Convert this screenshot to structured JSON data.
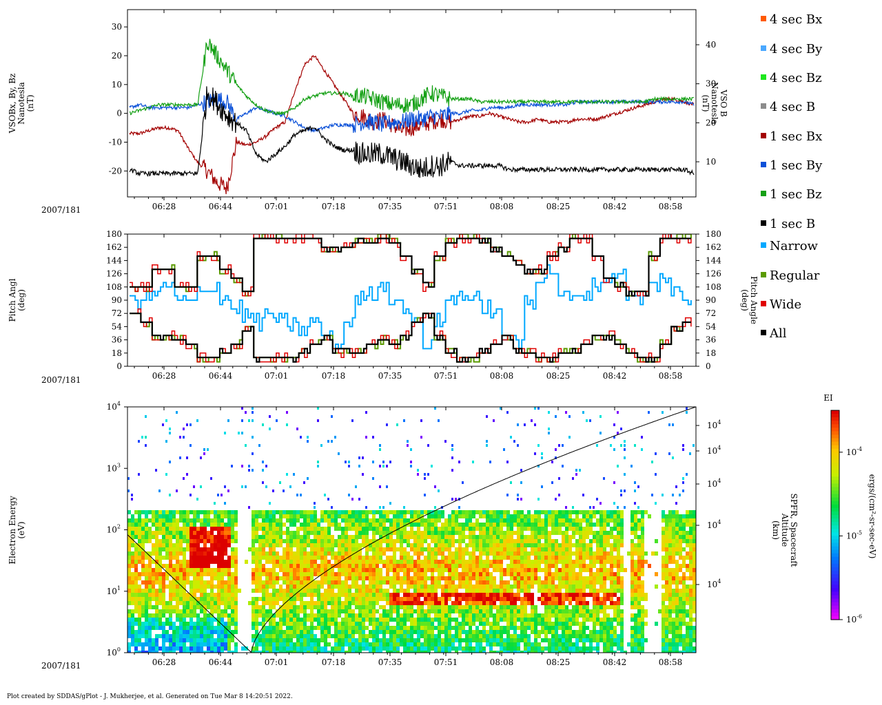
{
  "chart_data": [
    {
      "type": "line",
      "id": "mag",
      "ylabel_left": [
        "VSOBx, By, Bz",
        "Nanotesla",
        "(nT)"
      ],
      "ylabel_right": [
        "VSO B",
        "Nanotesla",
        "(nT)"
      ],
      "ylim": [
        -29,
        36
      ],
      "ylim_right": [
        1,
        49
      ],
      "yticks": [
        -20,
        -10,
        0,
        10,
        20,
        30
      ],
      "yticks_right": [
        10,
        20,
        30,
        40
      ],
      "date_label": "2007/181",
      "xticks": [
        "06:28",
        "06:44",
        "07:01",
        "07:18",
        "07:35",
        "07:51",
        "08:08",
        "08:25",
        "08:42",
        "08:58"
      ],
      "xrange": [
        "06:15",
        "09:04"
      ],
      "series": [
        {
          "name": "1 sec Bx",
          "color": "#a30000",
          "values": [
            -7,
            -7,
            -6,
            -5,
            -5,
            -6,
            -12,
            -17,
            -20,
            -24,
            -26,
            -10,
            -11,
            -10,
            -8,
            -5,
            -3,
            8,
            17,
            20,
            15,
            10,
            5,
            0,
            -1,
            -3,
            -2,
            -4,
            -6,
            -5,
            -4,
            -3,
            -2,
            -3,
            -2,
            -1,
            -1,
            0,
            -1,
            -2,
            -3,
            -3,
            -2,
            -3,
            -3,
            -3,
            -2,
            -2,
            -2,
            -1,
            0,
            1,
            2,
            3,
            4,
            5,
            5,
            4,
            3
          ]
        },
        {
          "name": "1 sec By",
          "color": "#0a50d8",
          "values": [
            2,
            3,
            2,
            2,
            2,
            2,
            2,
            3,
            4,
            5,
            4,
            -2,
            0,
            2,
            1,
            0,
            -1,
            -3,
            -5,
            -6,
            -5,
            -4,
            -4,
            -4,
            -3,
            -3,
            -4,
            -3,
            -3,
            -2,
            -2,
            -1,
            -1,
            0,
            0,
            1,
            1,
            2,
            2,
            2,
            3,
            3,
            3,
            3,
            3,
            3,
            4,
            4,
            4,
            4,
            4,
            4,
            4,
            4,
            4,
            4,
            4,
            4,
            3
          ]
        },
        {
          "name": "1 sec Bz",
          "color": "#14a014",
          "values": [
            0,
            1,
            2,
            3,
            3,
            3,
            3,
            3,
            25,
            20,
            15,
            10,
            6,
            3,
            1,
            0,
            0,
            2,
            5,
            6,
            7,
            7,
            7,
            6,
            6,
            5,
            4,
            3,
            3,
            3,
            5,
            7,
            6,
            5,
            5,
            5,
            4,
            4,
            4,
            4,
            4,
            4,
            4,
            4,
            4,
            4,
            4,
            4,
            4,
            4,
            4,
            4,
            4,
            4,
            5,
            5,
            5,
            5,
            5
          ]
        },
        {
          "name": "1 sec B",
          "color": "#000000",
          "right_axis": true,
          "values": [
            8,
            7,
            7,
            7,
            7,
            7,
            7,
            7,
            28,
            25,
            22,
            20,
            18,
            12,
            10,
            12,
            14,
            17,
            18,
            19,
            16,
            14,
            13,
            13,
            12,
            12,
            12,
            11,
            10,
            9,
            8,
            9,
            9,
            10,
            9,
            9,
            9,
            9,
            9,
            8,
            8,
            8,
            8,
            8,
            8,
            8,
            8,
            8,
            8,
            8,
            8,
            8,
            8,
            8,
            8,
            8,
            8,
            8,
            7
          ]
        }
      ]
    },
    {
      "type": "heatmap",
      "id": "pitch",
      "ylabel_left": [
        "Pitch Angl",
        "(deg)"
      ],
      "ylabel_right": [
        "Pitch Angle",
        "(deg)"
      ],
      "ylim": [
        0,
        180
      ],
      "yticks": [
        0,
        18,
        36,
        54,
        72,
        90,
        108,
        126,
        144,
        162,
        180
      ],
      "date_label": "2007/181",
      "xticks": [
        "06:28",
        "06:44",
        "07:01",
        "07:18",
        "07:35",
        "07:51",
        "08:08",
        "08:25",
        "08:42",
        "08:58"
      ],
      "series": [
        {
          "name": "Narrow",
          "color": "#00a8ff"
        },
        {
          "name": "Regular",
          "color": "#5a9a00"
        },
        {
          "name": "Wide",
          "color": "#e00000"
        },
        {
          "name": "All",
          "color": "#000000"
        }
      ]
    },
    {
      "type": "heatmap",
      "id": "spectro",
      "ylabel_left": [
        "Electron Energy",
        "(eV)"
      ],
      "ylabel_right": [
        "SPFR, Spacecraft",
        "Altitude",
        "(km)"
      ],
      "yscale": "log",
      "ylim": [
        1,
        10000
      ],
      "yticks_base": "10",
      "yticks_exp": [
        "0",
        "1",
        "2",
        "3",
        "4"
      ],
      "right_tick_labels": [
        "10",
        "10",
        "10",
        "10",
        "10"
      ],
      "right_tick_exp": "4",
      "date_label": "2007/181",
      "xticks": [
        "06:28",
        "06:44",
        "07:01",
        "07:18",
        "07:35",
        "07:51",
        "08:08",
        "08:25",
        "08:42",
        "08:58"
      ],
      "colorbar": {
        "title": "EI",
        "label": "ergs/(cm²-sr-sec-eV)",
        "tick_base": "10",
        "tick_exps": [
          "-4",
          "-5",
          "-6"
        ],
        "range_log10": [
          -6,
          -3.5
        ]
      }
    }
  ],
  "legend": [
    {
      "name": "4 sec Bx",
      "color": "#ff5a00"
    },
    {
      "name": "4 sec By",
      "color": "#4aa8ff"
    },
    {
      "name": "4 sec Bz",
      "color": "#1ee81e"
    },
    {
      "name": "4 sec B",
      "color": "#8c8c8c"
    },
    {
      "name": "1 sec Bx",
      "color": "#a30000"
    },
    {
      "name": "1 sec By",
      "color": "#0a50d8"
    },
    {
      "name": "1 sec Bz",
      "color": "#14a014"
    },
    {
      "name": "1 sec B",
      "color": "#000000"
    },
    {
      "name": "Narrow",
      "color": "#00a8ff"
    },
    {
      "name": "Regular",
      "color": "#5a9a00"
    },
    {
      "name": "Wide",
      "color": "#e00000"
    },
    {
      "name": "All",
      "color": "#000000"
    }
  ],
  "footer": "Plot created by SDDAS/gPlot - J. Mukherjee, et al.  Generated on Tue Mar 8 14:20:51 2022."
}
